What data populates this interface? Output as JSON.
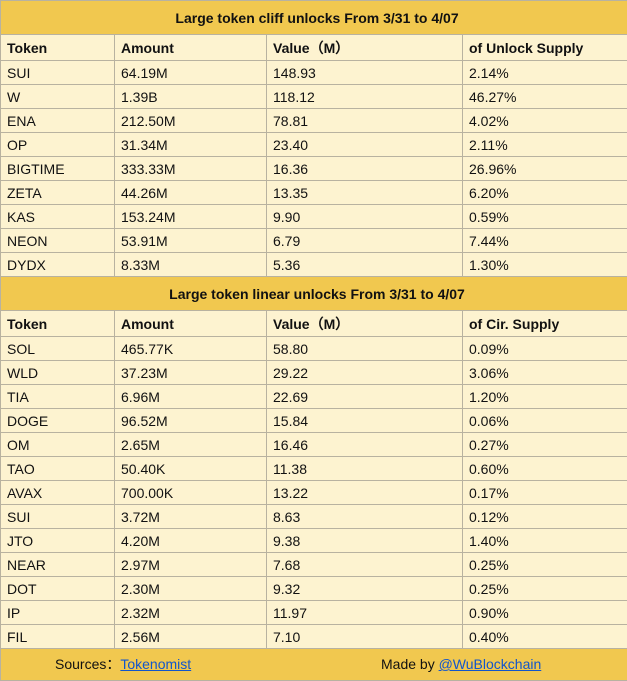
{
  "tables": [
    {
      "title": "Large token cliff unlocks From  3/31 to 4/07",
      "header": [
        "Token",
        "Amount",
        "Value（M）",
        "of Unlock Supply"
      ],
      "rows": [
        [
          "SUI",
          "64.19M",
          "148.93",
          "2.14%"
        ],
        [
          "W",
          "1.39B",
          "118.12",
          "46.27%"
        ],
        [
          "ENA",
          "212.50M",
          "78.81",
          "4.02%"
        ],
        [
          "OP",
          "31.34M",
          "23.40",
          "2.11%"
        ],
        [
          "BIGTIME",
          "333.33M",
          "16.36",
          "26.96%"
        ],
        [
          "ZETA",
          "44.26M",
          "13.35",
          "6.20%"
        ],
        [
          "KAS",
          "153.24M",
          "9.90",
          "0.59%"
        ],
        [
          "NEON",
          "53.91M",
          "6.79",
          "7.44%"
        ],
        [
          "DYDX",
          "8.33M",
          "5.36",
          "1.30%"
        ]
      ]
    },
    {
      "title": "Large token linear unlocks From   3/31 to 4/07",
      "header": [
        "Token",
        "Amount",
        "Value（M）",
        "of Cir. Supply"
      ],
      "rows": [
        [
          "SOL",
          "465.77K",
          "58.80",
          "0.09%"
        ],
        [
          "WLD",
          "37.23M",
          "29.22",
          "3.06%"
        ],
        [
          "TIA",
          "6.96M",
          "22.69",
          "1.20%"
        ],
        [
          "DOGE",
          "96.52M",
          "15.84",
          "0.06%"
        ],
        [
          "OM",
          "2.65M",
          "16.46",
          "0.27%"
        ],
        [
          "TAO",
          "50.40K",
          "11.38",
          "0.60%"
        ],
        [
          "AVAX",
          "700.00K",
          "13.22",
          "0.17%"
        ],
        [
          "SUI",
          "3.72M",
          "8.63",
          "0.12%"
        ],
        [
          "JTO",
          "4.20M",
          "9.38",
          "1.40%"
        ],
        [
          "NEAR",
          "2.97M",
          "7.68",
          "0.25%"
        ],
        [
          "DOT",
          "2.30M",
          "9.32",
          "0.25%"
        ],
        [
          "IP",
          "2.32M",
          "11.97",
          "0.90%"
        ],
        [
          "FIL",
          "2.56M",
          "7.10",
          "0.40%"
        ]
      ]
    }
  ],
  "footer": {
    "sources_label": "Sources：",
    "sources_link": "Tokenomist",
    "made_by_label": "Made by ",
    "made_by_link": "@WuBlockchain"
  }
}
